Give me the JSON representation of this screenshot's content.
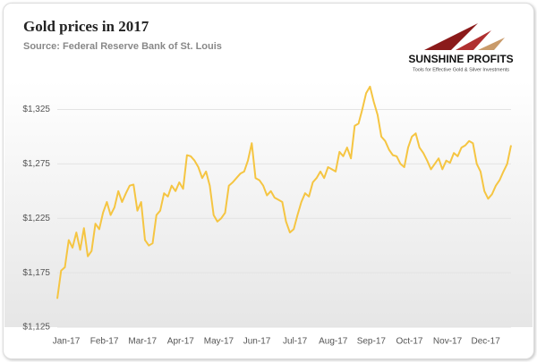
{
  "logo": {
    "name": "SUNSHINE PROFITS",
    "tagline": "Tools for Effective Gold & Silver Investments"
  },
  "chart_data": {
    "type": "line",
    "title": "Gold prices in 2017",
    "subtitle": "Source: Federal Reserve Bank of St. Louis",
    "categories": [
      "Jan-17",
      null,
      null,
      null,
      null,
      null,
      null,
      null,
      null,
      null,
      "Feb-17",
      null,
      null,
      null,
      null,
      null,
      null,
      null,
      null,
      null,
      "Mar-17",
      null,
      null,
      null,
      null,
      null,
      null,
      null,
      null,
      null,
      "Apr-17",
      null,
      null,
      null,
      null,
      null,
      null,
      null,
      null,
      null,
      "May-17",
      null,
      null,
      null,
      null,
      null,
      null,
      null,
      null,
      null,
      "Jun-17",
      null,
      null,
      null,
      null,
      null,
      null,
      null,
      null,
      null,
      "Jul-17",
      null,
      null,
      null,
      null,
      null,
      null,
      null,
      null,
      null,
      "Aug-17",
      null,
      null,
      null,
      null,
      null,
      null,
      null,
      null,
      null,
      "Sep-17",
      null,
      null,
      null,
      null,
      null,
      null,
      null,
      null,
      null,
      "Oct-17",
      null,
      null,
      null,
      null,
      null,
      null,
      null,
      null,
      null,
      "Nov-17",
      null,
      null,
      null,
      null,
      null,
      null,
      null,
      null,
      null,
      "Dec-17",
      null,
      null,
      null,
      null,
      null,
      null,
      null,
      null,
      null
    ],
    "series": [
      {
        "name": "Gold price",
        "color": "#f5c542",
        "values": [
          1151,
          1177,
          1180,
          1205,
          1198,
          1212,
          1196,
          1216,
          1190,
          1195,
          1220,
          1215,
          1230,
          1240,
          1228,
          1235,
          1250,
          1240,
          1248,
          1255,
          1256,
          1232,
          1240,
          1205,
          1200,
          1202,
          1228,
          1232,
          1248,
          1245,
          1255,
          1250,
          1258,
          1252,
          1283,
          1282,
          1278,
          1272,
          1262,
          1268,
          1255,
          1228,
          1222,
          1225,
          1230,
          1255,
          1258,
          1262,
          1266,
          1268,
          1278,
          1294,
          1262,
          1260,
          1255,
          1246,
          1250,
          1244,
          1242,
          1240,
          1222,
          1212,
          1215,
          1228,
          1240,
          1248,
          1245,
          1258,
          1262,
          1268,
          1262,
          1272,
          1270,
          1268,
          1286,
          1282,
          1290,
          1280,
          1310,
          1312,
          1325,
          1340,
          1346,
          1332,
          1320,
          1300,
          1296,
          1288,
          1283,
          1282,
          1275,
          1272,
          1290,
          1300,
          1303,
          1290,
          1285,
          1278,
          1270,
          1275,
          1280,
          1270,
          1278,
          1276,
          1285,
          1282,
          1290,
          1292,
          1296,
          1294,
          1275,
          1268,
          1250,
          1243,
          1247,
          1255,
          1260,
          1268,
          1275,
          1292
        ]
      }
    ],
    "ylim": [
      1125,
      1350
    ],
    "yticks": [
      {
        "value": 1125,
        "label": "$1,125"
      },
      {
        "value": 1175,
        "label": "$1,175"
      },
      {
        "value": 1225,
        "label": "$1,225"
      },
      {
        "value": 1275,
        "label": "$1,275"
      },
      {
        "value": 1325,
        "label": "$1,325"
      }
    ],
    "grid": true
  }
}
